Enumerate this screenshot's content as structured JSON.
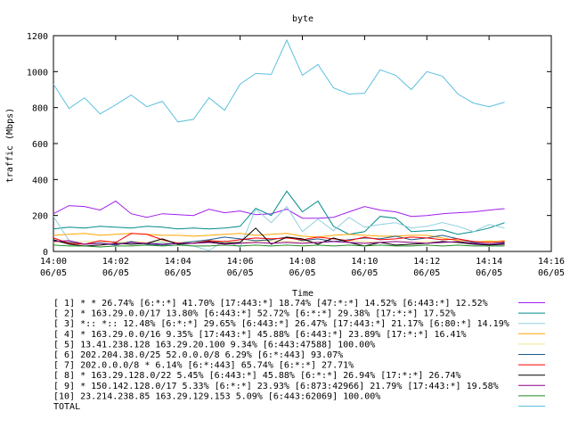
{
  "chart_data": {
    "type": "line",
    "title": "byte",
    "xlabel": "Time",
    "ylabel": "traffic (Mbps)",
    "ylim": [
      0,
      1200
    ],
    "yticks": [
      "0",
      "200",
      "400",
      "600",
      "800",
      "1000",
      "1200"
    ],
    "xlim": [
      "14:00",
      "14:16"
    ],
    "xticks": [
      {
        "time": "14:00",
        "date": "06/05"
      },
      {
        "time": "14:02",
        "date": "06/05"
      },
      {
        "time": "14:04",
        "date": "06/05"
      },
      {
        "time": "14:06",
        "date": "06/05"
      },
      {
        "time": "14:08",
        "date": "06/05"
      },
      {
        "time": "14:10",
        "date": "06/05"
      },
      {
        "time": "14:12",
        "date": "06/05"
      },
      {
        "time": "14:14",
        "date": "06/05"
      },
      {
        "time": "14:16",
        "date": "06/05"
      }
    ],
    "x": [
      "14:00:00",
      "14:00:30",
      "14:01:00",
      "14:01:30",
      "14:02:00",
      "14:02:30",
      "14:03:00",
      "14:03:30",
      "14:04:00",
      "14:04:30",
      "14:05:00",
      "14:05:30",
      "14:06:00",
      "14:06:30",
      "14:07:00",
      "14:07:30",
      "14:08:00",
      "14:08:30",
      "14:09:00",
      "14:09:30",
      "14:10:00",
      "14:10:30",
      "14:11:00",
      "14:11:30",
      "14:12:00",
      "14:12:30",
      "14:13:00",
      "14:13:30",
      "14:14:00",
      "14:14:30"
    ],
    "grid": false,
    "legend_position": "bottom",
    "series": [
      {
        "name": "[ 1] * * 26.74%  [6:*:*] 41.70% [17:443:*] 18.74% [47:*:*] 14.52% [6:443:*] 12.52%",
        "color": "#a020f0",
        "values": [
          210,
          255,
          250,
          230,
          280,
          210,
          190,
          210,
          205,
          200,
          235,
          215,
          225,
          205,
          210,
          235,
          185,
          185,
          190,
          220,
          250,
          230,
          220,
          195,
          200,
          210,
          215,
          220,
          230,
          238
        ]
      },
      {
        "name": "[ 2] * 163.29.0.0/17 13.80%  [6:443:*] 52.72% [6:*:*] 29.38% [17:*:*] 17.52%",
        "color": "#008b8b",
        "values": [
          125,
          135,
          130,
          140,
          135,
          130,
          140,
          135,
          125,
          130,
          125,
          130,
          140,
          240,
          200,
          335,
          220,
          280,
          140,
          95,
          110,
          195,
          185,
          110,
          115,
          120,
          95,
          110,
          130,
          160
        ]
      },
      {
        "name": "[ 3] *:: *:: 12.48%  [6:*:*] 29.65% [6:443:*] 26.47% [17:443:*] 21.17% [6:80:*] 14.19%",
        "color": "#90d0e0",
        "values": [
          195,
          60,
          40,
          50,
          55,
          40,
          45,
          50,
          40,
          30,
          5,
          60,
          25,
          235,
          160,
          250,
          110,
          180,
          115,
          190,
          135,
          150,
          160,
          130,
          140,
          160,
          140,
          110,
          150,
          130
        ]
      },
      {
        "name": "[ 4] * 163.29.0.0/16 9.35%  [17:443:*] 45.88% [6:443:*] 23.89% [17:*:*] 16.41%",
        "color": "#ffa500",
        "values": [
          90,
          95,
          100,
          90,
          95,
          100,
          95,
          90,
          90,
          85,
          90,
          95,
          100,
          90,
          95,
          100,
          85,
          80,
          90,
          95,
          90,
          85,
          85,
          90,
          90,
          75,
          60,
          55,
          55,
          60
        ]
      },
      {
        "name": "[ 5] 13.41.238.128 163.29.20.100 9.34%  [6:443:47588] 100.00%",
        "color": "#f0e68c",
        "values": [
          50,
          50,
          55,
          55,
          50,
          55,
          50,
          55,
          50,
          55,
          50,
          55,
          50,
          55,
          60,
          55,
          55,
          50,
          55,
          60,
          55,
          50,
          55,
          50,
          55,
          50,
          55,
          55,
          60,
          55
        ]
      },
      {
        "name": "[ 6] 202.204.38.0/25 52.0.0.0/8 6.29%  [6:*:443] 93.07%",
        "color": "#1e5a8c",
        "values": [
          60,
          50,
          40,
          45,
          35,
          55,
          40,
          35,
          45,
          55,
          65,
          80,
          70,
          60,
          65,
          80,
          60,
          70,
          55,
          65,
          75,
          70,
          85,
          65,
          75,
          90,
          70,
          50,
          40,
          50
        ]
      },
      {
        "name": "[ 7] 202.0.0.0/8 * 6.14%  [6:*:443] 65.74% [6:*:*] 27.71%",
        "color": "#ff0000",
        "values": [
          75,
          45,
          40,
          60,
          50,
          100,
          95,
          65,
          45,
          45,
          60,
          55,
          65,
          75,
          70,
          75,
          65,
          80,
          70,
          60,
          80,
          65,
          70,
          80,
          75,
          65,
          70,
          55,
          50,
          55
        ]
      },
      {
        "name": "[ 8] * 163.29.128.0/22 5.45%  [6:443:*] 45.88% [6:*:*] 26.94% [17:*:*] 26.74%",
        "color": "#000000",
        "values": [
          65,
          40,
          30,
          35,
          45,
          40,
          45,
          70,
          40,
          45,
          55,
          45,
          50,
          130,
          40,
          80,
          70,
          40,
          75,
          50,
          30,
          50,
          35,
          40,
          45,
          55,
          50,
          40,
          35,
          40
        ]
      },
      {
        "name": "[ 9] * 150.142.128.0/17 5.33%  [6:*:*] 23.93% [6:873:42966] 21.79% [17:443:*] 19.58%",
        "color": "#8b008b",
        "values": [
          55,
          60,
          40,
          45,
          40,
          50,
          45,
          40,
          45,
          45,
          50,
          40,
          45,
          50,
          45,
          50,
          45,
          50,
          55,
          50,
          45,
          50,
          55,
          50,
          45,
          50,
          55,
          45,
          40,
          45
        ]
      },
      {
        "name": "[10] 23.214.238.85 163.29.129.153 5.09%  [6:443:62069] 100.00%",
        "color": "#228b22",
        "values": [
          35,
          30,
          30,
          25,
          30,
          30,
          35,
          30,
          35,
          30,
          30,
          35,
          30,
          35,
          30,
          35,
          30,
          35,
          30,
          35,
          30,
          35,
          30,
          30,
          35,
          30,
          35,
          30,
          30,
          30
        ]
      },
      {
        "name": "TOTAL",
        "color": "#5bc0de",
        "values": [
          930,
          795,
          855,
          765,
          815,
          870,
          805,
          835,
          720,
          735,
          855,
          785,
          930,
          990,
          985,
          1175,
          980,
          1040,
          910,
          875,
          880,
          1010,
          980,
          900,
          1000,
          975,
          875,
          825,
          805,
          830
        ]
      }
    ]
  }
}
